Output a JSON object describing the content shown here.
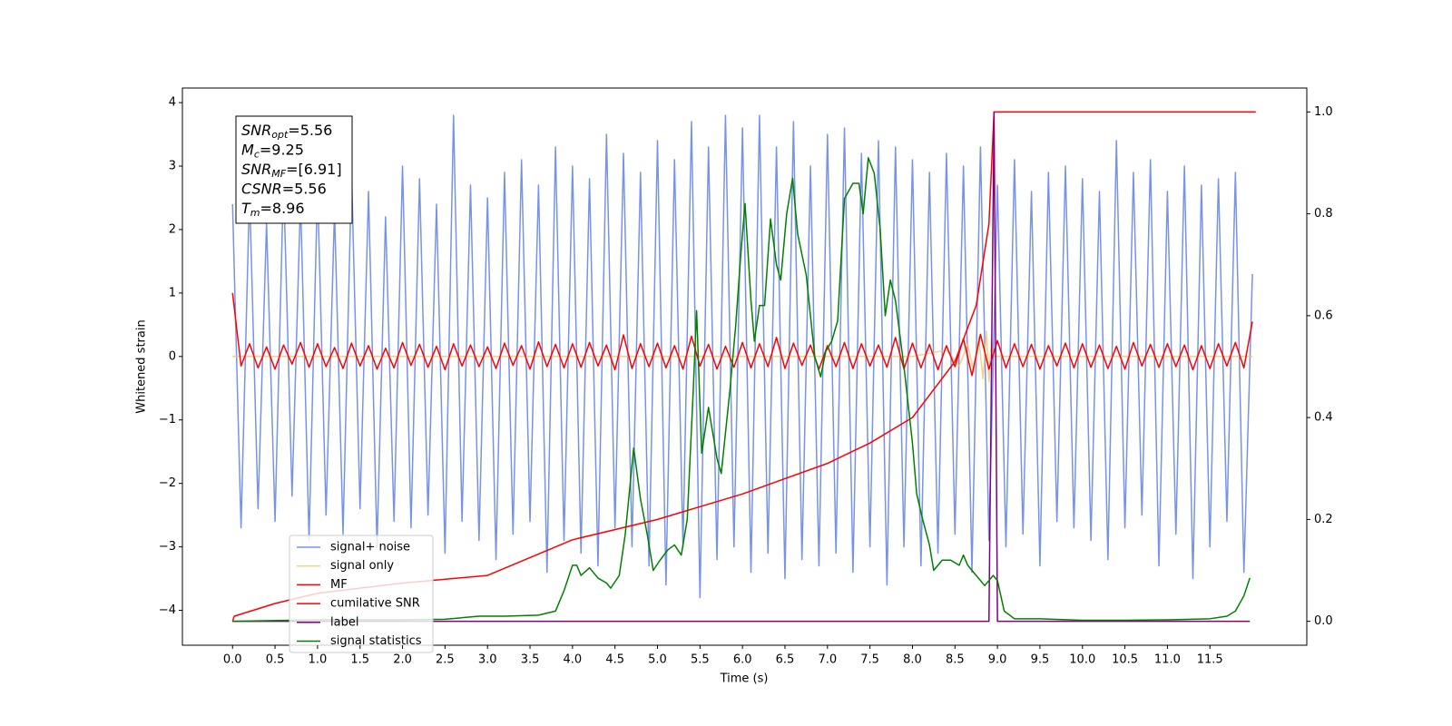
{
  "chart_data": {
    "type": "line",
    "xlabel": "Time (s)",
    "ylabel": "Whitened strain",
    "xlim": [
      -0.59,
      12.64
    ],
    "ylim": [
      -4.55,
      4.23
    ],
    "y2lim": [
      -0.047,
      1.047
    ],
    "xticks": [
      {
        "value": 0,
        "label": "0.0"
      },
      0.5,
      {
        "value": 1,
        "label": "1.0"
      },
      1.5,
      {
        "value": 2,
        "label": "2.0"
      },
      2.5,
      {
        "value": 3,
        "label": "3.0"
      },
      3.5,
      {
        "value": 4,
        "label": "4.0"
      },
      4.5,
      {
        "value": 5,
        "label": "5.0"
      },
      5.5,
      {
        "value": 6,
        "label": "6.0"
      },
      6.5,
      {
        "value": 7,
        "label": "7.0"
      },
      7.5,
      {
        "value": 8,
        "label": "8.0"
      },
      8.5,
      {
        "value": 9,
        "label": "9.0"
      },
      9.5,
      {
        "value": 10,
        "label": "10.0"
      },
      10.5,
      {
        "value": 11,
        "label": "11.0"
      },
      11.5
    ],
    "yticks": [
      {
        "value": -4,
        "label": "−4"
      },
      {
        "value": -3,
        "label": "−3"
      },
      {
        "value": -2,
        "label": "−2"
      },
      {
        "value": -1,
        "label": "−1"
      },
      0,
      1,
      2,
      3,
      4
    ],
    "y2ticks": [
      {
        "value": 0,
        "label": "0.0"
      },
      0.2,
      0.4,
      0.6,
      0.8,
      {
        "value": 1,
        "label": "1.0"
      }
    ],
    "legend": "lower left",
    "textbox": [
      {
        "base": "SNR",
        "sub": "opt",
        "text": "=5.56"
      },
      {
        "base": "M",
        "sub": "c",
        "text": "=9.25"
      },
      {
        "base": "SNR",
        "sub": "MF",
        "text": "=[6.91]"
      },
      {
        "base": "CSNR",
        "text": "=5.56"
      },
      {
        "base": "T",
        "sub": "m",
        "text": "=8.96"
      }
    ],
    "x": [
      0,
      0.1,
      0.2,
      0.3,
      0.4,
      0.5,
      0.6,
      0.7,
      0.8,
      0.9,
      1,
      1.1,
      1.2,
      1.3,
      1.4,
      1.5,
      1.6,
      1.7,
      1.8,
      1.9,
      2,
      2.1,
      2.2,
      2.3,
      2.4,
      2.5,
      2.6,
      2.7,
      2.8,
      2.9,
      3,
      3.1,
      3.2,
      3.3,
      3.4,
      3.5,
      3.6,
      3.7,
      3.8,
      3.9,
      4,
      4.1,
      4.2,
      4.3,
      4.4,
      4.5,
      4.6,
      4.7,
      4.8,
      4.9,
      5,
      5.1,
      5.2,
      5.3,
      5.4,
      5.5,
      5.6,
      5.7,
      5.8,
      5.9,
      6,
      6.1,
      6.2,
      6.3,
      6.4,
      6.5,
      6.6,
      6.7,
      6.8,
      6.9,
      7,
      7.1,
      7.2,
      7.3,
      7.4,
      7.5,
      7.6,
      7.7,
      7.8,
      7.9,
      8,
      8.1,
      8.2,
      8.3,
      8.4,
      8.5,
      8.6,
      8.7,
      8.8,
      8.9,
      9,
      9.1,
      9.2,
      9.3,
      9.4,
      9.5,
      9.6,
      9.7,
      9.8,
      9.9,
      10,
      10.1,
      10.2,
      10.3,
      10.4,
      10.5,
      10.6,
      10.7,
      10.8,
      10.9,
      11,
      11.1,
      11.2,
      11.3,
      11.4,
      11.5,
      11.6,
      11.7,
      11.8,
      11.9,
      12
    ],
    "series": [
      {
        "name": "signal+ noise",
        "color": "#7793e8",
        "values": [
          2.4,
          -2.7,
          2.6,
          -2.4,
          2.1,
          -2.6,
          2.8,
          -2.2,
          2.5,
          -2.9,
          2.7,
          -2.5,
          2.3,
          -2.8,
          2.9,
          -2.4,
          2.6,
          -3.0,
          2.2,
          -2.6,
          3.0,
          -2.7,
          2.8,
          -2.5,
          2.4,
          -3.1,
          3.8,
          -2.6,
          2.7,
          -2.9,
          2.5,
          -3.2,
          2.9,
          -2.8,
          3.1,
          -2.6,
          2.7,
          -3.4,
          3.3,
          -2.9,
          3.0,
          -3.1,
          2.8,
          -3.3,
          3.5,
          -2.7,
          3.2,
          -3.0,
          2.9,
          -3.3,
          3.4,
          -3.6,
          3.1,
          -3.0,
          3.7,
          -3.8,
          3.3,
          -3.2,
          3.8,
          -3.0,
          3.6,
          -3.4,
          3.8,
          -3.1,
          3.3,
          -3.5,
          3.7,
          -3.2,
          3.0,
          -3.3,
          3.5,
          -3.1,
          3.6,
          -3.4,
          3.2,
          -3.0,
          3.4,
          -3.6,
          3.3,
          -3.0,
          3.1,
          -3.3,
          2.9,
          -3.1,
          3.2,
          -2.8,
          3.0,
          -3.4,
          3.3,
          -2.9,
          2.7,
          -3.0,
          3.1,
          -2.8,
          2.6,
          -3.3,
          2.9,
          -2.6,
          3.0,
          -2.7,
          2.8,
          -2.9,
          2.6,
          -3.2,
          3.4,
          -2.7,
          2.9,
          -2.5,
          3.1,
          -3.3,
          2.6,
          -2.8,
          3.0,
          -3.5,
          2.7,
          -3.0,
          2.8,
          -2.6,
          2.9,
          -3.4,
          1.3
        ]
      },
      {
        "name": "signal only",
        "color": "#f2c46e",
        "x": [
          0,
          8.0,
          8.4,
          8.55,
          8.65,
          8.72,
          8.78,
          8.83,
          8.87,
          8.9,
          8.93,
          8.95,
          12.0
        ],
        "values": [
          0,
          0,
          0.1,
          -0.15,
          0.2,
          -0.25,
          0.3,
          -0.35,
          0.4,
          -0.4,
          0.3,
          0,
          0
        ]
      },
      {
        "name": "MF",
        "color": "#ff0000",
        "values": [
          1.0,
          -0.15,
          0.2,
          -0.18,
          0.15,
          -0.2,
          0.18,
          -0.12,
          0.22,
          -0.17,
          0.2,
          -0.16,
          0.14,
          -0.19,
          0.21,
          -0.15,
          0.17,
          -0.2,
          0.13,
          -0.18,
          0.22,
          -0.14,
          0.19,
          -0.17,
          0.16,
          -0.21,
          0.2,
          -0.15,
          0.18,
          -0.16,
          0.15,
          -0.19,
          0.21,
          -0.14,
          0.17,
          -0.2,
          0.23,
          -0.16,
          0.19,
          -0.18,
          0.2,
          -0.17,
          0.22,
          -0.15,
          0.18,
          -0.21,
          0.34,
          -0.19,
          0.2,
          -0.16,
          0.21,
          -0.18,
          0.17,
          -0.2,
          0.32,
          -0.15,
          0.19,
          -0.2,
          0.16,
          -0.17,
          0.22,
          -0.18,
          0.2,
          -0.16,
          0.3,
          -0.19,
          0.21,
          -0.14,
          0.18,
          -0.2,
          0.17,
          -0.16,
          0.22,
          -0.19,
          0.2,
          -0.15,
          0.18,
          -0.17,
          0.3,
          -0.2,
          0.21,
          -0.18,
          0.19,
          -0.21,
          0.17,
          -0.16,
          0.28,
          -0.3,
          0.35,
          -0.2,
          0.25,
          -0.18,
          0.2,
          -0.16,
          0.19,
          -0.2,
          0.17,
          -0.15,
          0.21,
          -0.18,
          0.2,
          -0.17,
          0.18,
          -0.19,
          0.16,
          -0.2,
          0.22,
          -0.15,
          0.19,
          -0.17,
          0.2,
          -0.16,
          0.18,
          -0.21,
          0.17,
          -0.19,
          0.2,
          -0.15,
          0.22,
          -0.18,
          0.55
        ]
      },
      {
        "name": "cumilative SNR",
        "color": "#ff0000",
        "axis": "y2",
        "x": [
          0,
          0.02,
          0.5,
          1,
          2,
          3,
          4,
          5,
          6,
          7,
          7.5,
          8,
          8.5,
          8.75,
          8.9,
          8.96,
          12.04
        ],
        "values": [
          0,
          0.01,
          0.035,
          0.055,
          0.075,
          0.09,
          0.16,
          0.2,
          0.25,
          0.31,
          0.35,
          0.4,
          0.51,
          0.62,
          0.78,
          1.0,
          1.0
        ]
      },
      {
        "name": "label",
        "color": "#800080",
        "axis": "y2",
        "x": [
          0,
          8.9,
          8.96,
          9.0,
          11.97
        ],
        "values": [
          0,
          0,
          1,
          0,
          0
        ]
      },
      {
        "name": "signal statistics",
        "color": "#008000",
        "axis": "y2",
        "x": [
          0,
          1,
          2,
          2.5,
          2.9,
          3.2,
          3.6,
          3.8,
          3.9,
          4.0,
          4.05,
          4.1,
          4.2,
          4.3,
          4.4,
          4.45,
          4.55,
          4.62,
          4.72,
          4.8,
          4.88,
          4.95,
          5.03,
          5.12,
          5.2,
          5.28,
          5.35,
          5.42,
          5.46,
          5.52,
          5.6,
          5.7,
          5.75,
          5.85,
          5.92,
          5.98,
          6.03,
          6.1,
          6.14,
          6.2,
          6.26,
          6.33,
          6.4,
          6.45,
          6.52,
          6.59,
          6.65,
          6.75,
          6.85,
          6.92,
          6.98,
          7.05,
          7.12,
          7.2,
          7.3,
          7.37,
          7.42,
          7.48,
          7.55,
          7.62,
          7.68,
          7.74,
          7.8,
          7.9,
          8.0,
          8.05,
          8.12,
          8.2,
          8.25,
          8.35,
          8.45,
          8.55,
          8.6,
          8.65,
          8.75,
          8.85,
          8.95,
          9.0,
          9.08,
          9.2,
          9.5,
          10,
          10.5,
          11,
          11.5,
          11.7,
          11.8,
          11.9,
          11.97
        ],
        "values": [
          0,
          0.003,
          0.003,
          0.004,
          0.01,
          0.01,
          0.012,
          0.02,
          0.06,
          0.11,
          0.11,
          0.09,
          0.105,
          0.085,
          0.075,
          0.065,
          0.09,
          0.17,
          0.34,
          0.24,
          0.17,
          0.1,
          0.12,
          0.14,
          0.15,
          0.13,
          0.2,
          0.45,
          0.61,
          0.33,
          0.42,
          0.32,
          0.29,
          0.45,
          0.58,
          0.72,
          0.82,
          0.63,
          0.55,
          0.62,
          0.62,
          0.79,
          0.7,
          0.67,
          0.8,
          0.87,
          0.76,
          0.68,
          0.52,
          0.48,
          0.53,
          0.55,
          0.59,
          0.83,
          0.86,
          0.86,
          0.8,
          0.91,
          0.88,
          0.77,
          0.6,
          0.67,
          0.63,
          0.5,
          0.35,
          0.25,
          0.2,
          0.15,
          0.1,
          0.12,
          0.12,
          0.11,
          0.13,
          0.11,
          0.09,
          0.07,
          0.09,
          0.08,
          0.02,
          0.005,
          0.005,
          0.002,
          0.002,
          0.003,
          0.005,
          0.01,
          0.02,
          0.05,
          0.085
        ]
      }
    ]
  }
}
